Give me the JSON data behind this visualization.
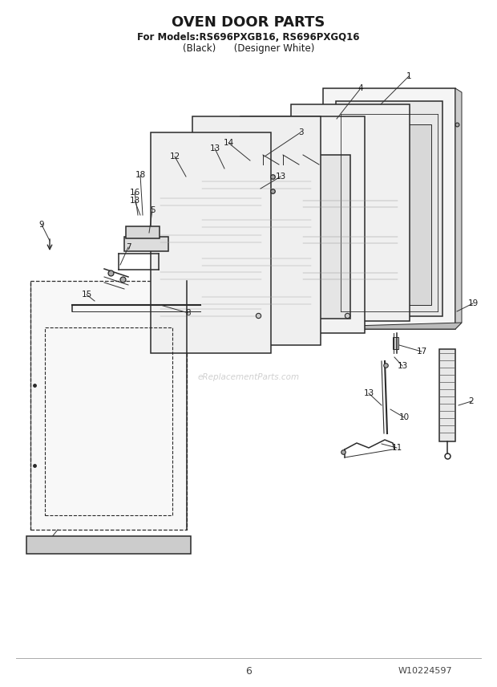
{
  "title": "OVEN DOOR PARTS",
  "subtitle1": "For Models:RS696PXGB16, RS696PXGQ16",
  "subtitle2": "(Black)      (Designer White)",
  "page_number": "6",
  "part_number": "W10224597",
  "watermark": "eReplacementParts.com",
  "bg_color": "#ffffff",
  "line_color": "#2a2a2a",
  "label_color": "#1a1a1a"
}
